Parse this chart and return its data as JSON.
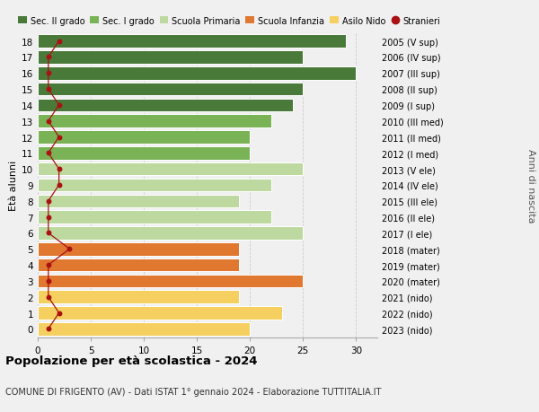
{
  "ages": [
    18,
    17,
    16,
    15,
    14,
    13,
    12,
    11,
    10,
    9,
    8,
    7,
    6,
    5,
    4,
    3,
    2,
    1,
    0
  ],
  "right_labels": [
    "2005 (V sup)",
    "2006 (IV sup)",
    "2007 (III sup)",
    "2008 (II sup)",
    "2009 (I sup)",
    "2010 (III med)",
    "2011 (II med)",
    "2012 (I med)",
    "2013 (V ele)",
    "2014 (IV ele)",
    "2015 (III ele)",
    "2016 (II ele)",
    "2017 (I ele)",
    "2018 (mater)",
    "2019 (mater)",
    "2020 (mater)",
    "2021 (nido)",
    "2022 (nido)",
    "2023 (nido)"
  ],
  "bar_values": [
    29,
    25,
    30,
    25,
    24,
    22,
    20,
    20,
    25,
    22,
    19,
    22,
    25,
    19,
    19,
    25,
    19,
    23,
    20
  ],
  "bar_colors": [
    "#4a7a3a",
    "#4a7a3a",
    "#4a7a3a",
    "#4a7a3a",
    "#4a7a3a",
    "#7ab356",
    "#7ab356",
    "#7ab356",
    "#bdd9a0",
    "#bdd9a0",
    "#bdd9a0",
    "#bdd9a0",
    "#bdd9a0",
    "#e07830",
    "#e07830",
    "#e07830",
    "#f5d060",
    "#f5d060",
    "#f5d060"
  ],
  "stranieri_values": [
    2,
    1,
    1,
    1,
    2,
    1,
    2,
    1,
    2,
    2,
    1,
    1,
    1,
    3,
    1,
    1,
    1,
    2,
    1
  ],
  "stranieri_color": "#aa1111",
  "title": "Popolazione per età scolastica - 2024",
  "subtitle": "COMUNE DI FRIGENTO (AV) - Dati ISTAT 1° gennaio 2024 - Elaborazione TUTTITALIA.IT",
  "ylabel": "Età alunni",
  "ylabel2": "Anni di nascita",
  "legend_labels": [
    "Sec. II grado",
    "Sec. I grado",
    "Scuola Primaria",
    "Scuola Infanzia",
    "Asilo Nido",
    "Stranieri"
  ],
  "legend_colors": [
    "#4a7a3a",
    "#7ab356",
    "#bdd9a0",
    "#e07830",
    "#f5d060",
    "#aa1111"
  ],
  "xlim": [
    0,
    32
  ],
  "bg_color": "#f0f0f0"
}
